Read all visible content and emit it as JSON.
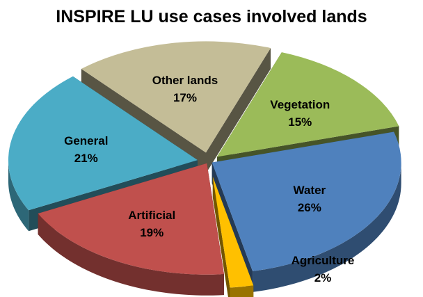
{
  "chart_data": {
    "type": "pie",
    "style": "3d-exploded",
    "title": "INSPIRE LU use cases involved lands",
    "slices": [
      {
        "label": "Vegetation",
        "value": 15,
        "display": "15%",
        "color": "#9bbb59"
      },
      {
        "label": "Water",
        "value": 26,
        "display": "26%",
        "color": "#4f81bd"
      },
      {
        "label": "Agriculture",
        "value": 2,
        "display": "2%",
        "color": "#ffc000"
      },
      {
        "label": "Artificial",
        "value": 19,
        "display": "19%",
        "color": "#c0504d"
      },
      {
        "label": "General",
        "value": 21,
        "display": "21%",
        "color": "#4bacc6"
      },
      {
        "label": "Other lands",
        "value": 17,
        "display": "17%",
        "color": "#c4bd97"
      }
    ]
  }
}
